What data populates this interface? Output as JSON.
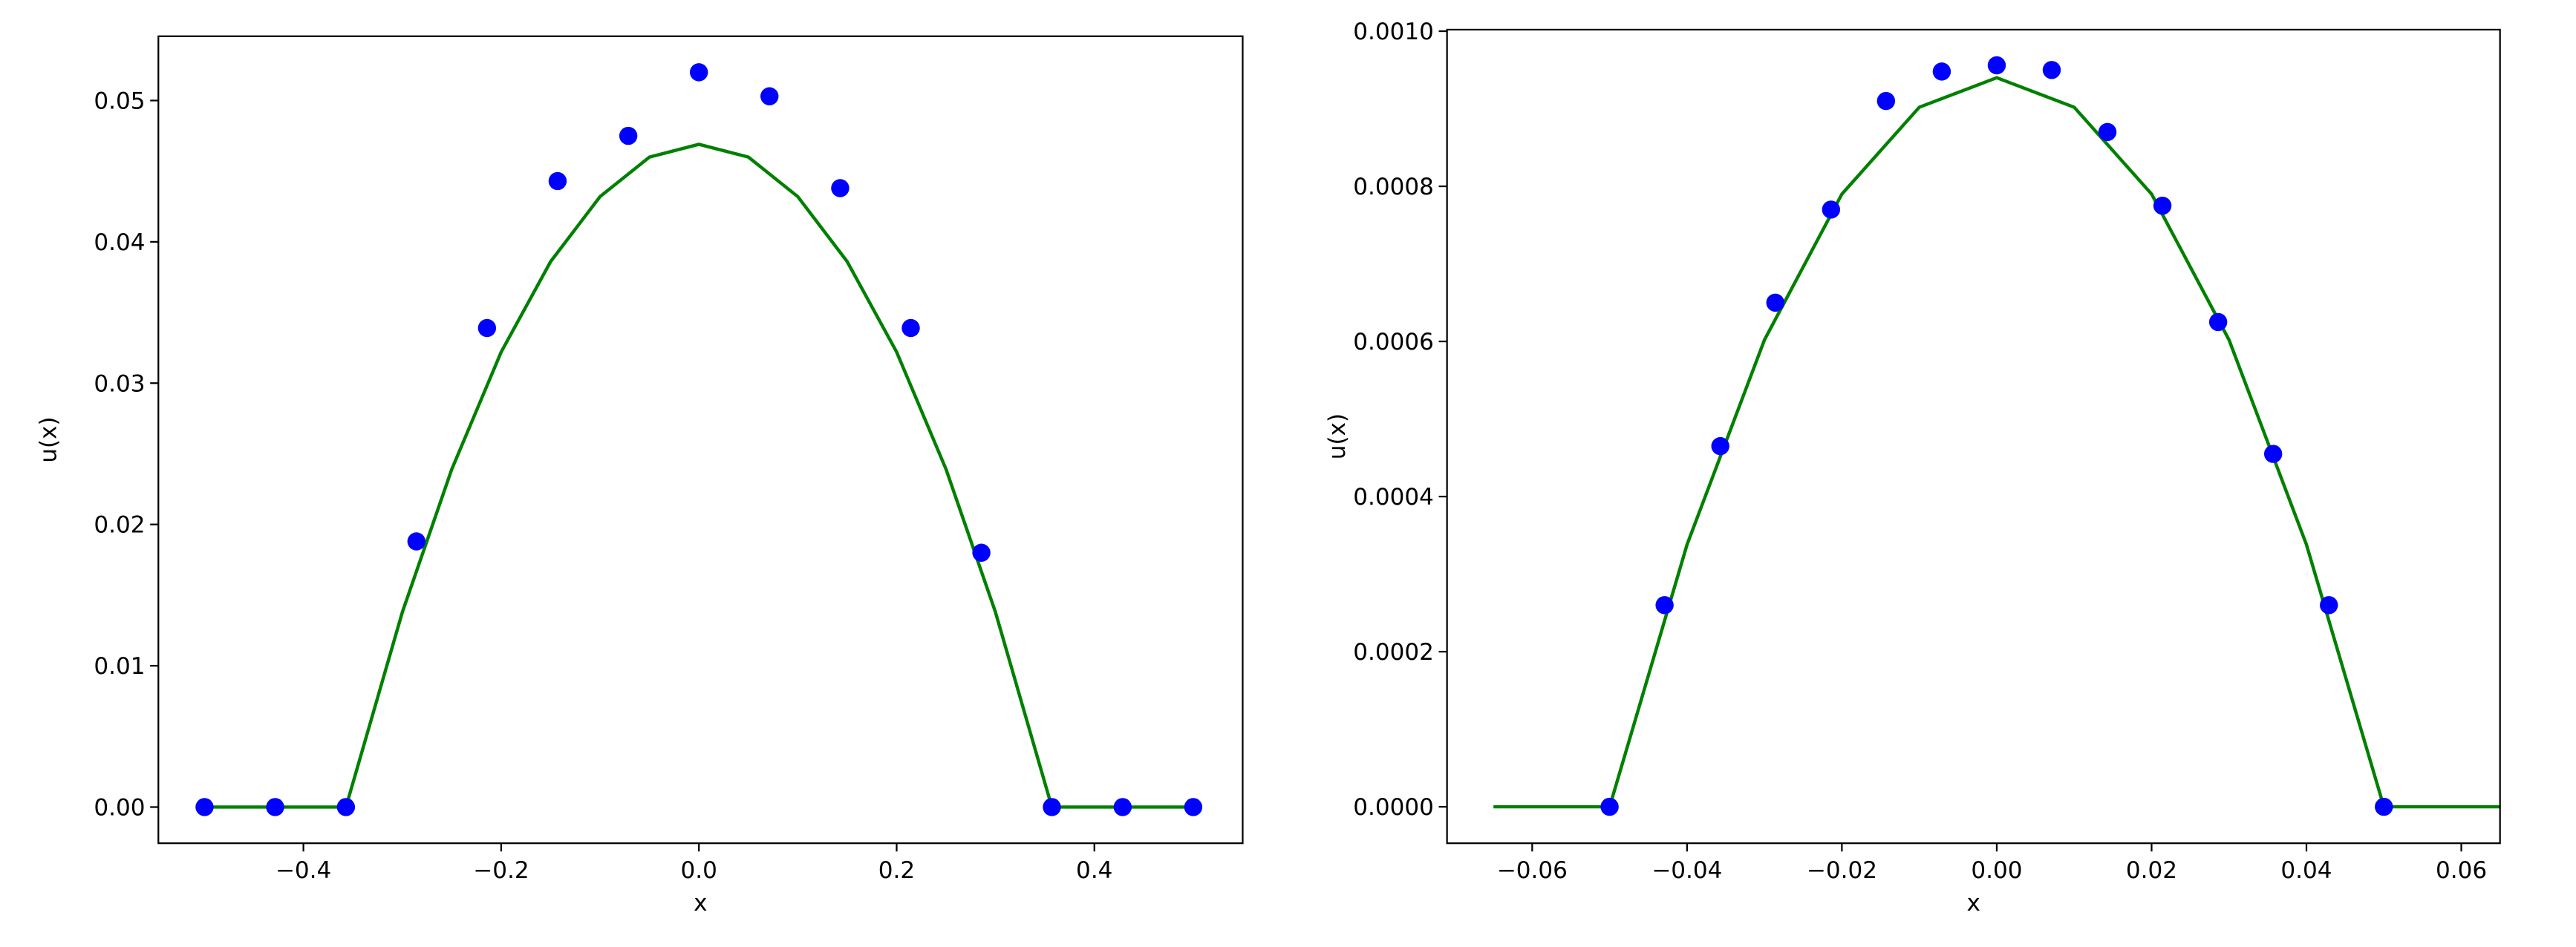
{
  "chart_data": [
    {
      "type": "line",
      "xlabel": "x",
      "ylabel": "u(x)",
      "xlim": [
        -0.5467,
        0.55
      ],
      "ylim": [
        -0.00256,
        0.05455
      ],
      "xticks": [
        {
          "value": -0.4,
          "label": "−0.4"
        },
        {
          "value": -0.2,
          "label": "−0.2"
        },
        {
          "value": 0,
          "label": "0.0"
        },
        {
          "value": 0.2,
          "label": "0.2"
        },
        {
          "value": 0.4,
          "label": "0.4"
        }
      ],
      "yticks": [
        {
          "value": 0,
          "label": "0.00"
        },
        {
          "value": 0.01,
          "label": "0.01"
        },
        {
          "value": 0.02,
          "label": "0.02"
        },
        {
          "value": 0.03,
          "label": "0.03"
        },
        {
          "value": 0.04,
          "label": "0.04"
        },
        {
          "value": 0.05,
          "label": "0.05"
        }
      ],
      "series": [
        {
          "color": "#008000",
          "style": "line",
          "x": [
            -0.5,
            -0.4,
            -0.357,
            -0.3,
            -0.25,
            -0.2,
            -0.15,
            -0.1,
            -0.05,
            0,
            0.05,
            0.1,
            0.15,
            0.2,
            0.25,
            0.3,
            0.357,
            0.4,
            0.5
          ],
          "values": [
            0,
            0,
            0,
            0.01378,
            0.0239,
            0.0322,
            0.0386,
            0.0432,
            0.046,
            0.0469,
            0.046,
            0.0432,
            0.0386,
            0.0322,
            0.0239,
            0.01378,
            0,
            0,
            0
          ]
        },
        {
          "color": "#0000ff",
          "style": "markers",
          "x": [
            -0.5,
            -0.4286,
            -0.357,
            -0.2857,
            -0.2143,
            -0.1429,
            -0.0714,
            0,
            0.0714,
            0.1429,
            0.2143,
            0.2857,
            0.357,
            0.4286,
            0.5
          ],
          "values": [
            0,
            0,
            0,
            0.0188,
            0.0339,
            0.0443,
            0.0475,
            0.052,
            0.0503,
            0.0438,
            0.0339,
            0.018,
            0,
            0,
            0
          ]
        }
      ]
    },
    {
      "type": "line",
      "xlabel": "x",
      "ylabel": "u(x)",
      "xlim": [
        -0.071,
        0.065
      ],
      "ylim": [
        -4.7e-05,
        0.001002
      ],
      "xticks": [
        {
          "value": -0.06,
          "label": "−0.06"
        },
        {
          "value": -0.04,
          "label": "−0.04"
        },
        {
          "value": -0.02,
          "label": "−0.02"
        },
        {
          "value": 0,
          "label": "0.00"
        },
        {
          "value": 0.02,
          "label": "0.02"
        },
        {
          "value": 0.04,
          "label": "0.04"
        },
        {
          "value": 0.06,
          "label": "0.06"
        }
      ],
      "yticks": [
        {
          "value": 0,
          "label": "0.0000"
        },
        {
          "value": 0.0002,
          "label": "0.0002"
        },
        {
          "value": 0.0004,
          "label": "0.0004"
        },
        {
          "value": 0.0006,
          "label": "0.0006"
        },
        {
          "value": 0.0008,
          "label": "0.0008"
        },
        {
          "value": 0.001,
          "label": "0.0010"
        }
      ],
      "series": [
        {
          "color": "#008000",
          "style": "line",
          "x": [
            -0.065,
            -0.05,
            -0.04,
            -0.03,
            -0.02,
            -0.01,
            0,
            0.01,
            0.02,
            0.03,
            0.04,
            0.05,
            0.065
          ],
          "values": [
            0,
            0,
            0.000338,
            0.000602,
            0.00079,
            0.000902,
            0.00094,
            0.000902,
            0.00079,
            0.000602,
            0.000338,
            0,
            0
          ]
        },
        {
          "color": "#0000ff",
          "style": "markers",
          "x": [
            -0.05,
            -0.0429,
            -0.0357,
            -0.0286,
            -0.0214,
            -0.0143,
            -0.0071,
            0,
            0.0071,
            0.0143,
            0.0214,
            0.0286,
            0.0357,
            0.0429,
            0.05
          ],
          "values": [
            0,
            0.00026,
            0.000465,
            0.00065,
            0.00077,
            0.00091,
            0.000948,
            0.000956,
            0.00095,
            0.00087,
            0.000775,
            0.000625,
            0.000455,
            0.00026,
            0
          ]
        }
      ]
    }
  ]
}
